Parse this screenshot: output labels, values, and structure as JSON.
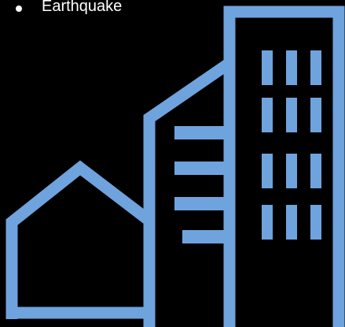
{
  "bullets": [
    {
      "text": "Earthquake"
    }
  ],
  "illustration": {
    "icon": "city-buildings-icon",
    "stroke_color": "#6fa3de",
    "background_color": "#000000"
  },
  "text_color": "#ffffff"
}
